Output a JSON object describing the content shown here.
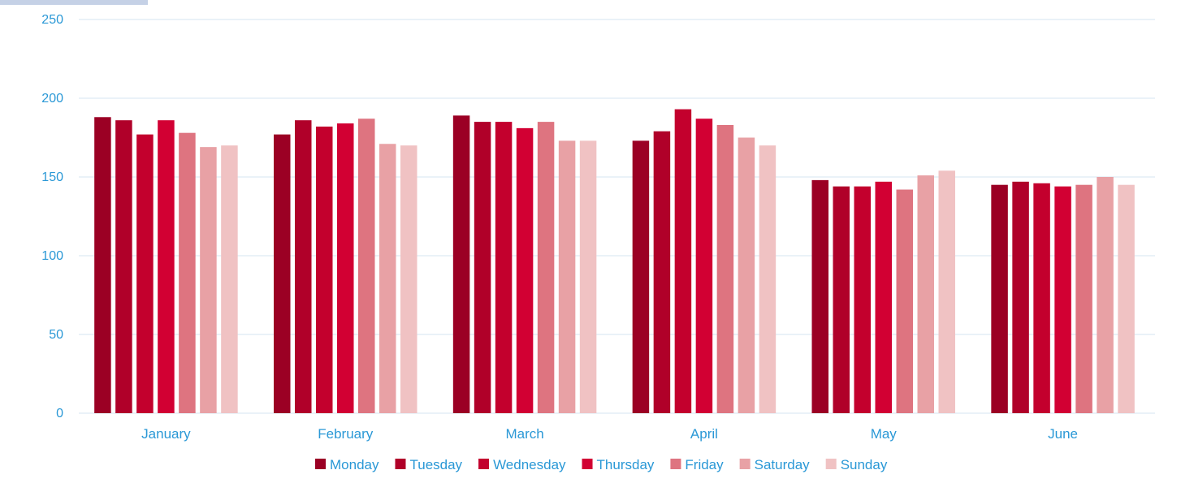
{
  "chart_data": {
    "type": "bar",
    "categories": [
      "January",
      "February",
      "March",
      "April",
      "May",
      "June"
    ],
    "series": [
      {
        "name": "Monday",
        "color": "#9b0024",
        "values": [
          188,
          177,
          189,
          173,
          148,
          145
        ]
      },
      {
        "name": "Tuesday",
        "color": "#b00029",
        "values": [
          186,
          186,
          185,
          179,
          144,
          147
        ]
      },
      {
        "name": "Wednesday",
        "color": "#c3002d",
        "values": [
          177,
          182,
          185,
          193,
          144,
          146
        ]
      },
      {
        "name": "Thursday",
        "color": "#d20033",
        "values": [
          186,
          184,
          181,
          187,
          147,
          144
        ]
      },
      {
        "name": "Friday",
        "color": "#de7480",
        "values": [
          178,
          187,
          185,
          183,
          142,
          145
        ]
      },
      {
        "name": "Saturday",
        "color": "#e8a1a5",
        "values": [
          169,
          171,
          173,
          175,
          151,
          150
        ]
      },
      {
        "name": "Sunday",
        "color": "#f0c2c3",
        "values": [
          170,
          170,
          173,
          170,
          154,
          145
        ]
      }
    ],
    "ylim": [
      0,
      250
    ],
    "yticks": [
      0,
      50,
      100,
      150,
      200,
      250
    ],
    "grid": true,
    "legend": "bottom",
    "axis_text_color": "#2a98d6",
    "grid_color": "#d6e6f0"
  }
}
